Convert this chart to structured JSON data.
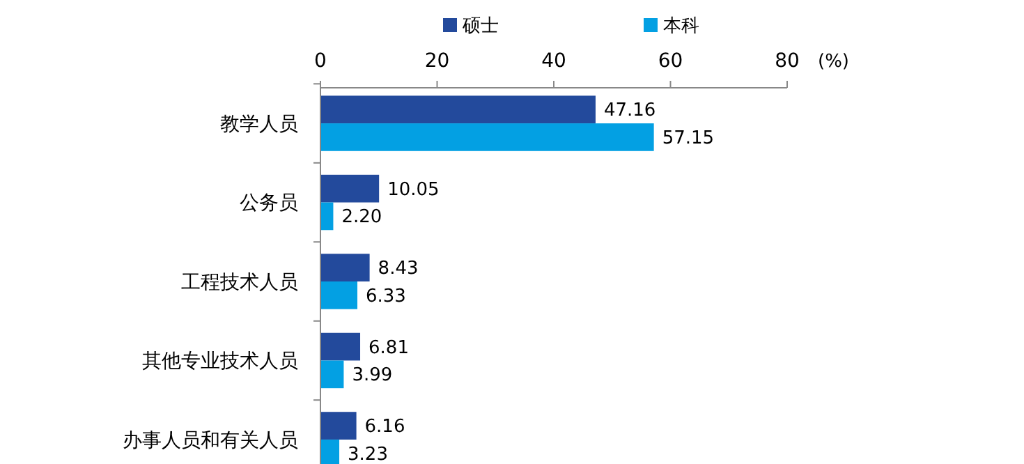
{
  "chart_data": {
    "type": "bar",
    "orientation": "horizontal",
    "categories": [
      "教学人员",
      "公务员",
      "工程技术人员",
      "其他专业技术人员",
      "办事人员和有关人员"
    ],
    "series": [
      {
        "name": "硕士",
        "color": "#234a9c",
        "values": [
          47.16,
          10.05,
          8.43,
          6.81,
          6.16
        ]
      },
      {
        "name": "本科",
        "color": "#03a0e3",
        "values": [
          57.15,
          2.2,
          6.33,
          3.99,
          3.23
        ]
      }
    ],
    "value_labels": [
      [
        "47.16",
        "10.05",
        "8.43",
        "6.81",
        "6.16"
      ],
      [
        "57.15",
        "2.20",
        "6.33",
        "3.99",
        "3.23"
      ]
    ],
    "xlim": [
      0,
      80
    ],
    "xticks": [
      0,
      20,
      40,
      60,
      80
    ],
    "xlabel": "(%)",
    "legend": "top",
    "grid": false
  }
}
